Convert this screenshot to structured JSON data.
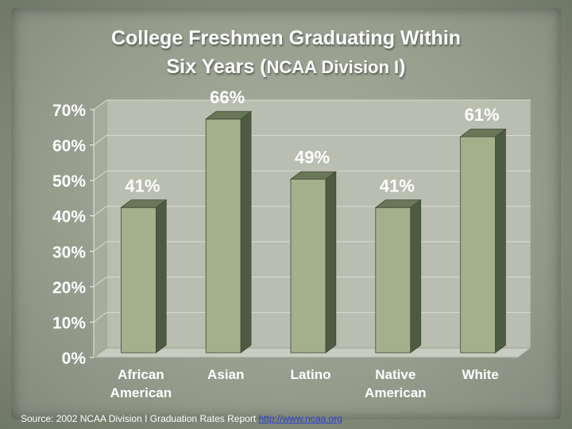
{
  "chart_data": {
    "type": "bar",
    "title_main": "College Freshmen Graduating Within",
    "title_line2": "Six Years (",
    "title_sub": "NCAA Division I",
    "title_close": ")",
    "categories": [
      "African American",
      "Asian",
      "Latino",
      "Native American",
      "White"
    ],
    "category_lines": [
      [
        "African",
        "American"
      ],
      [
        "Asian"
      ],
      [
        "Latino"
      ],
      [
        "Native",
        "American"
      ],
      [
        "White"
      ]
    ],
    "values": [
      41,
      66,
      49,
      41,
      61
    ],
    "data_labels": [
      "41%",
      "66%",
      "49%",
      "41%",
      "61%"
    ],
    "ylim": [
      0,
      70
    ],
    "yticks": [
      "0%",
      "10%",
      "20%",
      "30%",
      "40%",
      "50%",
      "60%",
      "70%"
    ],
    "xlabel": "",
    "ylabel": "",
    "grid": true
  },
  "source": {
    "text": "Source: 2002 NCAA Division I Graduation Rates Report ",
    "link_text": "http://www.ncaa.org"
  },
  "colors": {
    "bar_front": "#a4b08c",
    "bar_side": "#4f5a42",
    "bar_top": "#6a7658",
    "plot_bg": "#b9beb0",
    "grid": "#d8dbd2"
  }
}
